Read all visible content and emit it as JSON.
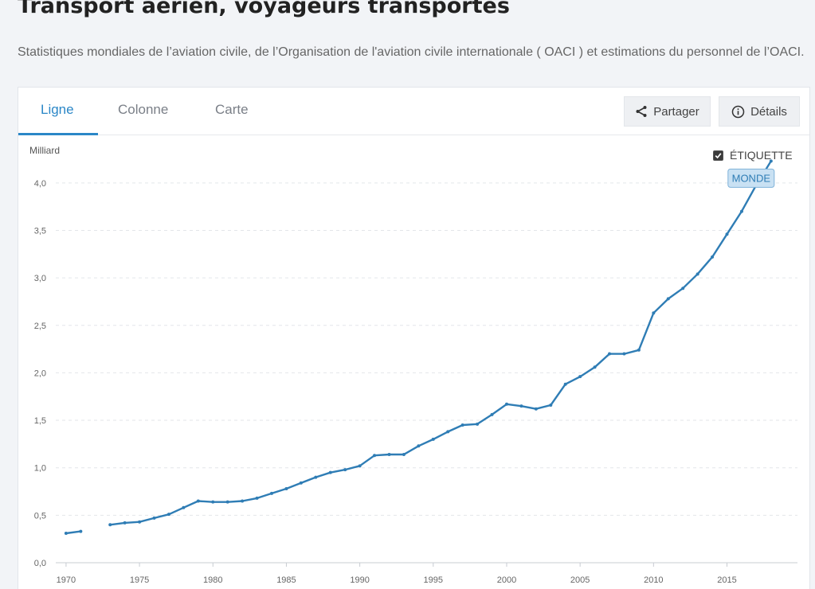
{
  "header": {
    "title": "Transport aérien, voyageurs transportés",
    "subtitle": "Statistiques mondiales de l’aviation civile, de l’Organisation de l'aviation civile internationale ( OACI ) et estimations du personnel de l’OACI."
  },
  "tabs": [
    {
      "label": "Ligne",
      "active": true
    },
    {
      "label": "Colonne",
      "active": false
    },
    {
      "label": "Carte",
      "active": false
    }
  ],
  "actions": {
    "share_label": "Partager",
    "share_icon": "share-icon",
    "details_label": "Détails",
    "details_icon": "info-icon"
  },
  "chart_controls": {
    "label_toggle": "ÉTIQUETTE",
    "label_toggle_checked": true
  },
  "colors": {
    "accent": "#2b87c7",
    "series": "#2f7db5",
    "label_bg": "#c9e1f3"
  },
  "chart_data": {
    "type": "line",
    "ylabel": "Milliard",
    "ylim": [
      0,
      4.25
    ],
    "yticks": [
      0,
      0.5,
      1.0,
      1.5,
      2.0,
      2.5,
      3.0,
      3.5,
      4.0
    ],
    "ytick_labels": [
      "0,0",
      "0,5",
      "1,0",
      "1,5",
      "2,0",
      "2,5",
      "3,0",
      "3,5",
      "4,0"
    ],
    "xlim": [
      1969.3,
      2019.8
    ],
    "xticks": [
      1970,
      1975,
      1980,
      1985,
      1990,
      1995,
      2000,
      2005,
      2010,
      2015
    ],
    "grid": true,
    "series": [
      {
        "name": "MONDE",
        "x": [
          1970,
          1971,
          1972,
          1973,
          1974,
          1975,
          1976,
          1977,
          1978,
          1979,
          1980,
          1981,
          1982,
          1983,
          1984,
          1985,
          1986,
          1987,
          1988,
          1989,
          1990,
          1991,
          1992,
          1993,
          1994,
          1995,
          1996,
          1997,
          1998,
          1999,
          2000,
          2001,
          2002,
          2003,
          2004,
          2005,
          2006,
          2007,
          2008,
          2009,
          2010,
          2011,
          2012,
          2013,
          2014,
          2015,
          2016,
          2017,
          2018
        ],
        "y": [
          0.31,
          0.33,
          null,
          0.4,
          0.42,
          0.43,
          0.47,
          0.51,
          0.58,
          0.65,
          0.64,
          0.64,
          0.65,
          0.68,
          0.73,
          0.78,
          0.84,
          0.9,
          0.95,
          0.98,
          1.02,
          1.13,
          1.14,
          1.14,
          1.23,
          1.3,
          1.38,
          1.45,
          1.46,
          1.56,
          1.67,
          1.65,
          1.62,
          1.66,
          1.88,
          1.96,
          2.06,
          2.2,
          2.2,
          2.24,
          2.63,
          2.78,
          2.89,
          3.04,
          3.22,
          3.46,
          3.7,
          3.98,
          4.23
        ]
      }
    ]
  }
}
